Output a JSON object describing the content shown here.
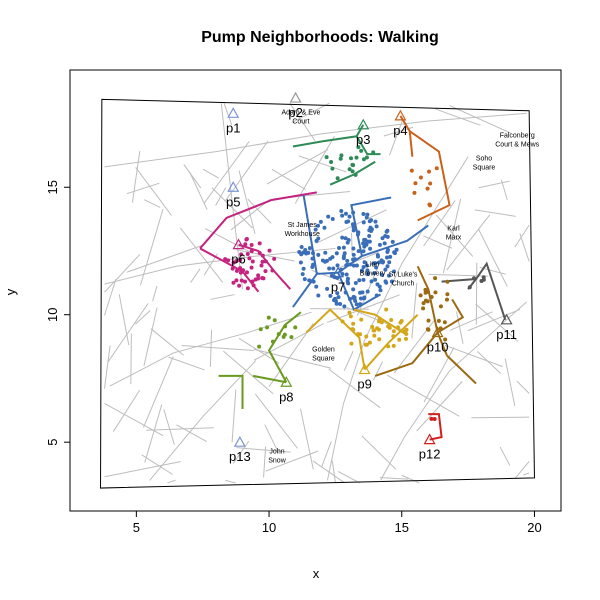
{
  "chart_data": {
    "type": "scatter",
    "title": "Pump Neighborhoods: Walking",
    "xlabel": "x",
    "ylabel": "y",
    "xlim": [
      2.5,
      21
    ],
    "ylim": [
      2.3,
      19.6
    ],
    "x_ticks": [
      5,
      10,
      15,
      20
    ],
    "y_ticks": [
      5,
      10,
      15
    ],
    "pumps": [
      {
        "label": "p1",
        "x": 8.65,
        "y": 17.9,
        "color": "#7b96d3"
      },
      {
        "label": "p2",
        "x": 11.0,
        "y": 18.5,
        "color": "#9a9a9a"
      },
      {
        "label": "p3",
        "x": 13.55,
        "y": 17.45,
        "color": "#2e8b57"
      },
      {
        "label": "p4",
        "x": 14.95,
        "y": 17.8,
        "color": "#c9611a"
      },
      {
        "label": "p5",
        "x": 8.65,
        "y": 15.0,
        "color": "#7b96d3"
      },
      {
        "label": "p6",
        "x": 8.85,
        "y": 12.75,
        "color": "#c4237f"
      },
      {
        "label": "p7",
        "x": 12.6,
        "y": 11.65,
        "color": "#3a6fb8"
      },
      {
        "label": "p8",
        "x": 10.65,
        "y": 7.35,
        "color": "#6a9a1f"
      },
      {
        "label": "p9",
        "x": 13.6,
        "y": 7.85,
        "color": "#d4a71a"
      },
      {
        "label": "p10",
        "x": 16.35,
        "y": 9.3,
        "color": "#9b6a12"
      },
      {
        "label": "p11",
        "x": 18.95,
        "y": 9.8,
        "color": "#555555"
      },
      {
        "label": "p12",
        "x": 16.05,
        "y": 5.1,
        "color": "#d21f1f"
      },
      {
        "label": "p13",
        "x": 8.9,
        "y": 5.0,
        "color": "#7b96d3"
      }
    ],
    "landmarks": [
      {
        "text": [
          "Adam & Eve",
          "Court"
        ],
        "x": 11.2,
        "y": 17.85
      },
      {
        "text": [
          "Falconberg",
          "Court & Mews"
        ],
        "x": 19.35,
        "y": 16.95
      },
      {
        "text": [
          "Soho",
          "Square"
        ],
        "x": 18.1,
        "y": 16.05
      },
      {
        "text": [
          "St James",
          "Workhouse"
        ],
        "x": 11.25,
        "y": 13.45
      },
      {
        "text": [
          "Karl",
          "Marx"
        ],
        "x": 16.95,
        "y": 13.3
      },
      {
        "text": [
          "Lion",
          "Brewery"
        ],
        "x": 13.9,
        "y": 11.9
      },
      {
        "text": [
          "St Luke's",
          "Church"
        ],
        "x": 15.05,
        "y": 11.5
      },
      {
        "text": [
          "Golden",
          "Square"
        ],
        "x": 12.05,
        "y": 8.55
      },
      {
        "text": [
          "John",
          "Snow"
        ],
        "x": 10.3,
        "y": 4.55
      }
    ]
  }
}
